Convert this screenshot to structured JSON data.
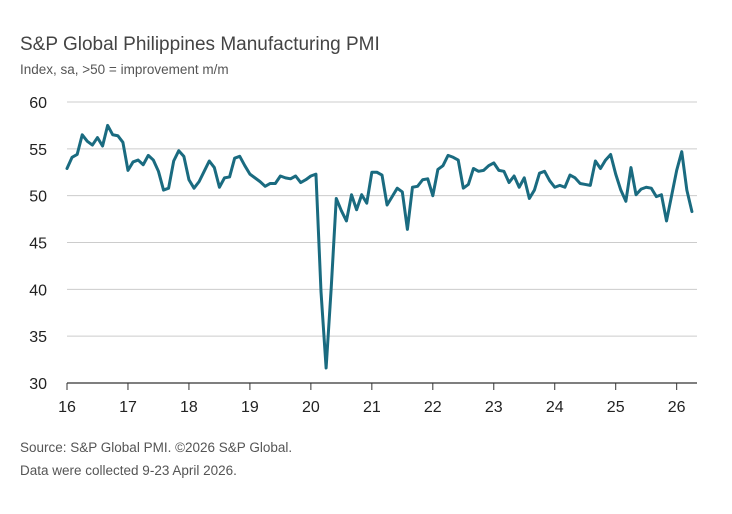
{
  "header": {
    "title": "S&P Global Philippines Manufacturing PMI",
    "subtitle": "Index, sa, >50 = improvement m/m"
  },
  "footer": {
    "source": "Source: S&P Global PMI. ©2026 S&P Global.",
    "note": "Data were collected 9-23 April 2026."
  },
  "colors": {
    "line": "#1a6b80",
    "grid": "#cccccc",
    "axis": "#333333"
  },
  "chart_data": {
    "type": "line",
    "title": "S&P Global Philippines Manufacturing PMI",
    "subtitle": "Index, sa, >50 = improvement m/m",
    "ylim": [
      30,
      60
    ],
    "yticks": [
      30,
      35,
      40,
      45,
      50,
      55,
      60
    ],
    "xticks": [
      "16",
      "17",
      "18",
      "19",
      "20",
      "21",
      "22",
      "23",
      "24",
      "25",
      "26"
    ],
    "xlim_start": "2016-01",
    "xlim_end": "2026-05",
    "grid": "horizontal",
    "series": [
      {
        "start": "2016-01",
        "values": [
          52.9,
          54.1,
          54.4,
          56.5,
          55.8,
          55.4,
          56.2,
          55.3,
          57.5,
          56.5,
          56.4,
          55.7,
          52.7,
          53.6,
          53.8,
          53.3,
          54.3,
          53.8,
          52.6,
          50.6,
          50.8,
          53.7,
          54.8,
          54.2,
          51.7,
          50.8,
          51.5,
          52.6,
          53.7,
          53.0,
          50.9,
          51.9,
          52.0,
          54.0,
          54.2,
          53.2,
          52.3,
          51.9,
          51.5,
          51.0,
          51.3,
          51.3,
          52.1,
          51.9,
          51.8,
          52.1,
          51.4,
          51.7,
          52.1,
          52.3,
          39.7,
          31.6,
          40.1,
          49.7,
          48.4,
          47.3,
          50.1,
          48.5,
          50.1,
          49.2,
          52.5,
          52.5,
          52.2,
          49.0,
          49.9,
          50.8,
          50.4,
          46.4,
          50.9,
          51.0,
          51.7,
          51.8,
          50.0,
          52.8,
          53.2,
          54.3,
          54.1,
          53.8,
          50.8,
          51.2,
          52.9,
          52.6,
          52.7,
          53.2,
          53.5,
          52.7,
          52.6,
          51.4,
          52.1,
          50.9,
          51.9,
          49.7,
          50.6,
          52.4,
          52.6,
          51.6,
          50.9,
          51.1,
          50.9,
          52.2,
          51.9,
          51.3,
          51.2,
          51.1,
          53.7,
          52.9,
          53.8,
          54.4,
          52.3,
          50.6,
          49.4,
          53.0,
          50.1,
          50.7,
          50.9,
          50.8,
          49.9,
          50.1,
          47.3,
          50.0,
          52.7,
          54.7,
          50.6,
          48.3
        ]
      }
    ]
  }
}
